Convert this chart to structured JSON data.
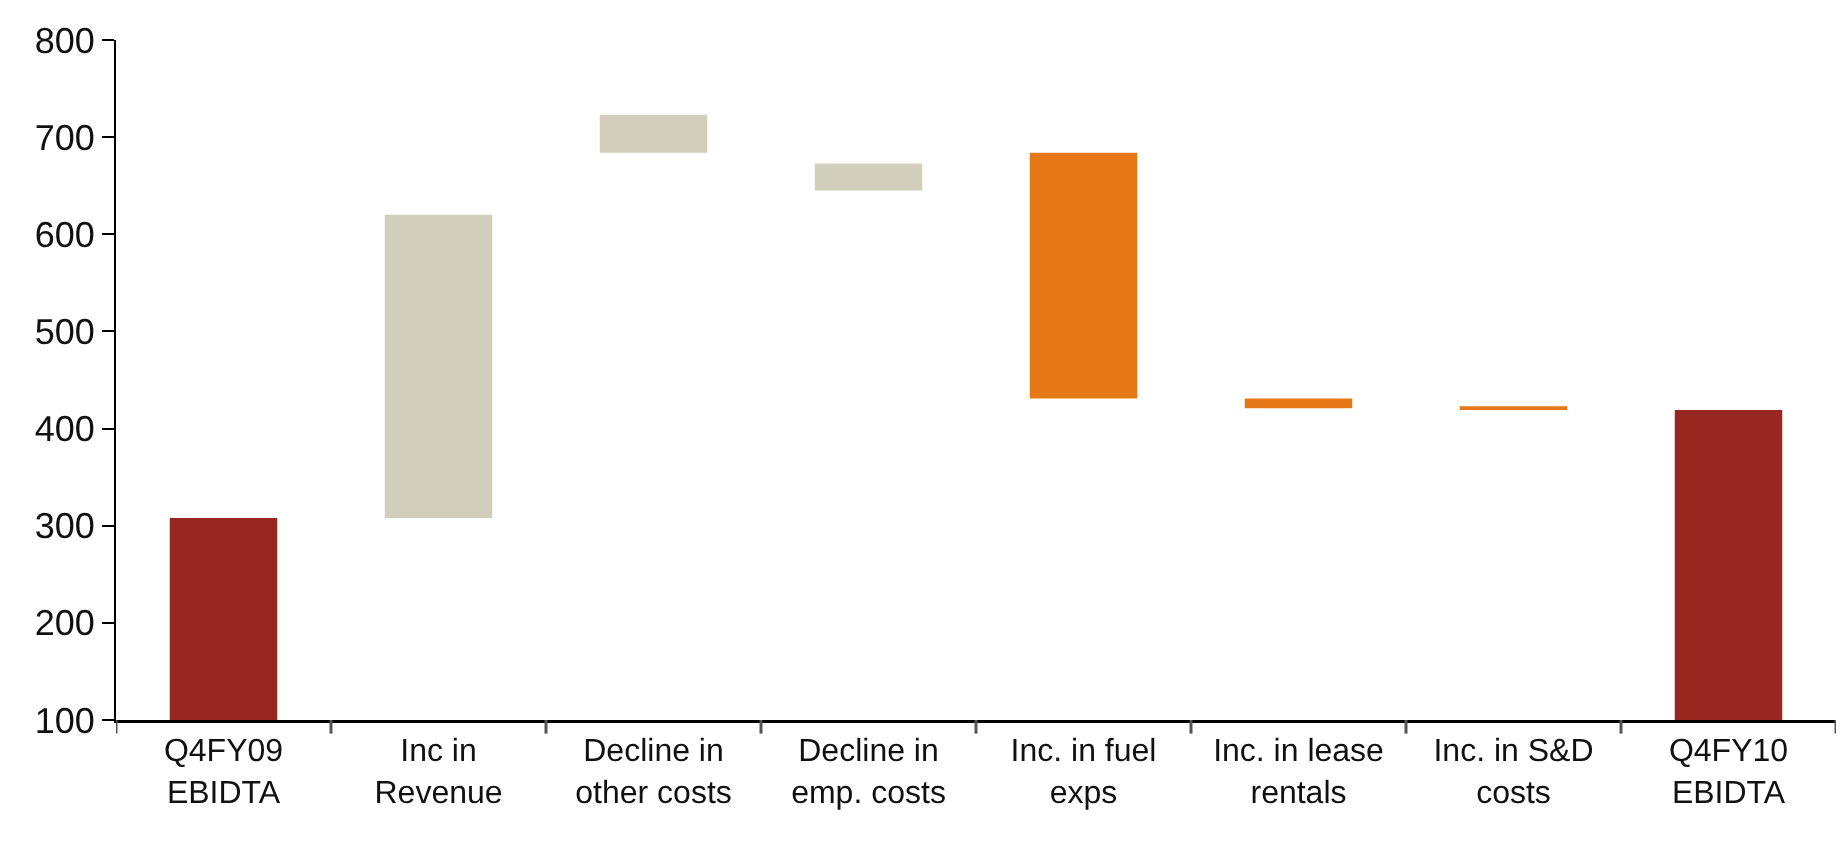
{
  "chart_data": {
    "type": "bar",
    "categories": [
      "Q4FY09\nEBIDTA",
      "Inc in\nRevenue",
      "Decline in\nother costs",
      "Decline in\nemp. costs",
      "Inc. in fuel\nexps",
      "Inc. in lease\nrentals",
      "Inc. in S&D\ncosts",
      "Q4FY10\nEBIDTA"
    ],
    "values": [
      308,
      312,
      39,
      28,
      253,
      10,
      4,
      419
    ],
    "base": [
      null,
      308,
      684,
      645,
      431,
      421,
      419,
      null
    ],
    "colors": [
      "#98281f",
      "#d1cebb",
      "#d1cebb",
      "#d1cebb",
      "#e67817",
      "#e67817",
      "#e67817",
      "#98281f"
    ],
    "ylim": [
      100,
      800
    ],
    "yticks": [
      100,
      200,
      300,
      400,
      500,
      600,
      700,
      800
    ],
    "grid": false
  }
}
